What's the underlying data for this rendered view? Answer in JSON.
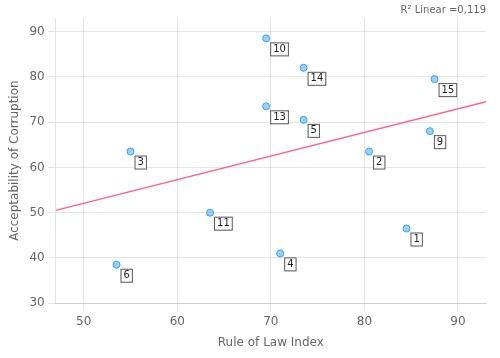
{
  "chart_data": {
    "type": "scatter",
    "xlabel": "Rule of Law Index",
    "ylabel": "Acceptability of Corruption",
    "xlim": [
      47,
      93
    ],
    "ylim": [
      30,
      93
    ],
    "xticks": [
      50,
      60,
      70,
      80,
      90
    ],
    "yticks": [
      30,
      40,
      50,
      60,
      70,
      80,
      90
    ],
    "grid": true,
    "series": [
      {
        "type": "scatter",
        "x": [
          84.5,
          80.5,
          55.0,
          71.0,
          73.5,
          53.5,
          87.0,
          69.5,
          63.5,
          69.5,
          73.5,
          87.5
        ],
        "values": [
          46.5,
          63.5,
          63.5,
          41.0,
          70.5,
          38.5,
          68.0,
          88.5,
          50.0,
          73.5,
          82.0,
          79.5
        ],
        "point_labels": [
          "1",
          "2",
          "3",
          "4",
          "5",
          "6",
          "9",
          "10",
          "11",
          "13",
          "14",
          "15"
        ]
      },
      {
        "type": "line",
        "x": [
          47,
          93
        ],
        "values": [
          50.5,
          74.5
        ]
      }
    ],
    "annotations": [
      {
        "text": "R² Linear =0,119"
      }
    ]
  }
}
